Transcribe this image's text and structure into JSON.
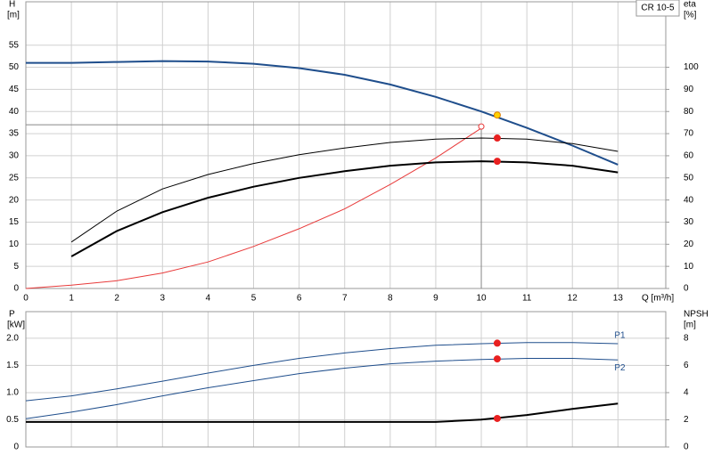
{
  "chart_data": [
    {
      "type": "line",
      "badge": "CR 10-5",
      "ylabel": "H",
      "yunit": "[m]",
      "y2label": "eta",
      "y2unit": "[%]",
      "xlabel": "Q [m³/h]",
      "x": [
        0,
        1,
        2,
        3,
        4,
        5,
        6,
        7,
        8,
        9,
        10,
        11,
        12,
        13
      ],
      "xlim": [
        0,
        14.05
      ],
      "xticks": [
        0,
        1,
        2,
        3,
        4,
        5,
        6,
        7,
        8,
        9,
        10,
        11,
        12,
        13
      ],
      "show_xtick_labels": true,
      "ylim": [
        0,
        64.8
      ],
      "yticks": [
        0,
        5,
        10,
        15,
        20,
        25,
        30,
        35,
        40,
        45,
        50,
        55
      ],
      "y2lim": [
        0,
        129.6
      ],
      "y2ticks": [
        0,
        10,
        20,
        30,
        40,
        50,
        60,
        70,
        80,
        90,
        100
      ],
      "grid": true,
      "series": [
        {
          "color": "#1f4e8c",
          "weight": "bold",
          "axis": "y",
          "values": [
            51,
            51,
            51.2,
            51.4,
            51.3,
            50.8,
            49.8,
            48.3,
            46.1,
            43.3,
            40,
            36.3,
            32.3,
            28
          ]
        },
        {
          "color": "#e83a3a",
          "weight": "thin",
          "axis": "y2",
          "values": [
            0,
            1.5,
            3.5,
            7,
            12,
            19,
            27,
            36,
            47,
            59,
            72.5,
            null,
            null,
            null
          ]
        },
        {
          "color": "#000000",
          "weight": "normal",
          "axis": "y2",
          "values": [
            null,
            21,
            35,
            45,
            51.5,
            56.5,
            60.5,
            63.5,
            66,
            67.5,
            68,
            67.5,
            65.5,
            62
          ]
        },
        {
          "color": "#000000",
          "weight": "bold",
          "axis": "y2",
          "values": [
            null,
            14.5,
            26,
            34.5,
            41,
            46,
            50,
            53,
            55.5,
            57,
            57.5,
            57,
            55.5,
            52.5
          ]
        }
      ],
      "duty_lines": {
        "x": 10,
        "y": 37
      },
      "markers": [
        {
          "x": 10.35,
          "y": 39.2,
          "axis": "y",
          "color": "#ffd200",
          "stroke": "#e08000",
          "open": false
        },
        {
          "x": 10,
          "y": 73.2,
          "axis": "y2",
          "color": "#e83a3a",
          "stroke": "#e83a3a",
          "open": true
        },
        {
          "x": 10.35,
          "y": 68,
          "axis": "y2",
          "color": "#e82020",
          "stroke": "#e82020",
          "open": false
        },
        {
          "x": 10.35,
          "y": 57.5,
          "axis": "y2",
          "color": "#e82020",
          "stroke": "#e82020",
          "open": false
        }
      ]
    },
    {
      "type": "line",
      "ylabel": "P",
      "yunit": "[kW]",
      "y2label": "NPSH",
      "y2unit": "[m]",
      "x": [
        0,
        1,
        2,
        3,
        4,
        5,
        6,
        7,
        8,
        9,
        10,
        11,
        12,
        13
      ],
      "xlim": [
        0,
        14.05
      ],
      "xticks": [
        0,
        1,
        2,
        3,
        4,
        5,
        6,
        7,
        8,
        9,
        10,
        11,
        12,
        13
      ],
      "show_xtick_labels": false,
      "ylim": [
        0,
        2.49
      ],
      "yticks": [
        0,
        0.5,
        {
          "value": 1,
          "label": "1.0"
        },
        1.5,
        {
          "value": 2,
          "label": "2.0"
        }
      ],
      "y2lim": [
        0,
        9.96
      ],
      "y2ticks": [
        0,
        2,
        4,
        6,
        8
      ],
      "grid": true,
      "series": [
        {
          "name": "P1",
          "color": "#1f4e8c",
          "weight": "normal",
          "axis": "y",
          "label_side": "above",
          "values": [
            0.85,
            0.94,
            1.07,
            1.21,
            1.36,
            1.5,
            1.63,
            1.73,
            1.81,
            1.87,
            1.9,
            1.92,
            1.92,
            1.9
          ]
        },
        {
          "name": "P2",
          "color": "#1f4e8c",
          "weight": "normal",
          "axis": "y",
          "label_side": "below",
          "values": [
            0.52,
            0.64,
            0.78,
            0.94,
            1.09,
            1.22,
            1.35,
            1.45,
            1.53,
            1.58,
            1.61,
            1.63,
            1.63,
            1.6
          ]
        },
        {
          "color": "#000000",
          "weight": "bold",
          "axis": "y2",
          "values": [
            1.84,
            1.84,
            1.84,
            1.84,
            1.84,
            1.84,
            1.84,
            1.84,
            1.84,
            1.84,
            2.02,
            2.35,
            2.8,
            3.2
          ]
        }
      ],
      "markers": [
        {
          "x": 10.35,
          "y": 1.91,
          "axis": "y",
          "color": "#e82020",
          "stroke": "#e82020",
          "open": false
        },
        {
          "x": 10.35,
          "y": 1.62,
          "axis": "y",
          "color": "#e82020",
          "stroke": "#e82020",
          "open": false
        },
        {
          "x": 10.35,
          "y": 2.1,
          "axis": "y2",
          "color": "#e82020",
          "stroke": "#e82020",
          "open": false
        }
      ]
    }
  ]
}
